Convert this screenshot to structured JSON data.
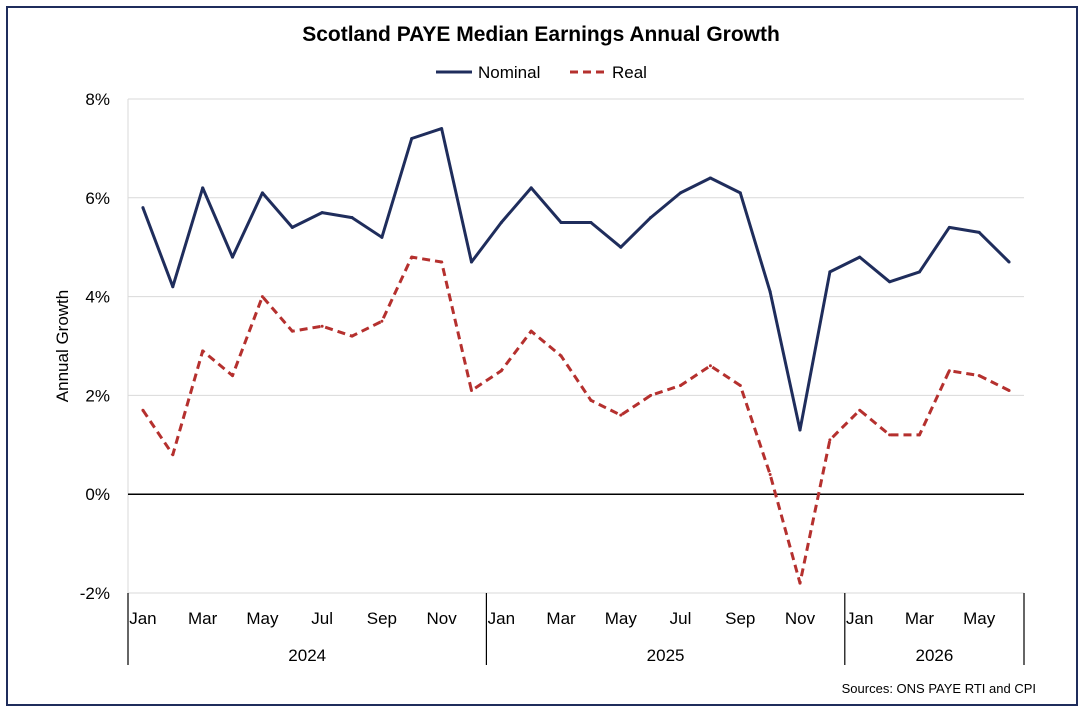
{
  "chart_data": {
    "type": "line",
    "title": "Scotland PAYE Median Earnings Annual Growth",
    "ylabel": "Annual Growth",
    "xlabel": "",
    "ylim": [
      -2,
      8
    ],
    "yticks": [
      "-2%",
      "0%",
      "2%",
      "4%",
      "6%",
      "8%"
    ],
    "ytick_values": [
      -2,
      0,
      2,
      4,
      6,
      8
    ],
    "grid": true,
    "legend_position": "top-center",
    "x": [
      "Jan 2024",
      "Feb 2024",
      "Mar 2024",
      "Apr 2024",
      "May 2024",
      "Jun 2024",
      "Jul 2024",
      "Aug 2024",
      "Sep 2024",
      "Oct 2024",
      "Nov 2024",
      "Dec 2024",
      "Jan 2025",
      "Feb 2025",
      "Mar 2025",
      "Apr 2025",
      "May 2025",
      "Jun 2025",
      "Jul 2025",
      "Aug 2025",
      "Sep 2025",
      "Oct 2025",
      "Nov 2025",
      "Dec 2025",
      "Jan 2026",
      "Feb 2026",
      "Mar 2026",
      "Apr 2026",
      "May 2026",
      "Jun 2026"
    ],
    "month_labels": [
      "Jan",
      "",
      "Mar",
      "",
      "May",
      "",
      "Jul",
      "",
      "Sep",
      "",
      "Nov",
      "",
      "Jan",
      "",
      "Mar",
      "",
      "May",
      "",
      "Jul",
      "",
      "Sep",
      "",
      "Nov",
      "",
      "Jan",
      "",
      "Mar",
      "",
      "May",
      ""
    ],
    "year_groups": [
      {
        "label": "2024",
        "start": 0,
        "end": 11
      },
      {
        "label": "2025",
        "start": 12,
        "end": 23
      },
      {
        "label": "2026",
        "start": 24,
        "end": 29
      }
    ],
    "series": [
      {
        "name": "Nominal",
        "color": "#1f2d5c",
        "dash": "solid",
        "values": [
          5.8,
          4.2,
          6.2,
          4.8,
          6.1,
          5.4,
          5.7,
          5.6,
          5.2,
          7.2,
          7.4,
          4.7,
          5.5,
          6.2,
          5.5,
          5.5,
          5.0,
          5.6,
          6.1,
          6.4,
          6.1,
          4.1,
          1.3,
          4.5,
          4.8,
          4.3,
          4.5,
          5.4,
          5.3,
          4.7
        ]
      },
      {
        "name": "Real",
        "color": "#b5302e",
        "dash": "dashed",
        "values": [
          1.7,
          0.8,
          2.9,
          2.4,
          4.0,
          3.3,
          3.4,
          3.2,
          3.5,
          4.8,
          4.7,
          2.1,
          2.5,
          3.3,
          2.8,
          1.9,
          1.6,
          2.0,
          2.2,
          2.6,
          2.2,
          0.4,
          -1.8,
          1.1,
          1.7,
          1.2,
          1.2,
          2.5,
          2.4,
          2.1
        ]
      }
    ]
  },
  "footer": {
    "source_text": "Sources: ONS PAYE RTI and CPI"
  },
  "colors": {
    "frame": "#1f2d5c",
    "grid": "#d9d9d9",
    "zero_line": "#000000"
  }
}
